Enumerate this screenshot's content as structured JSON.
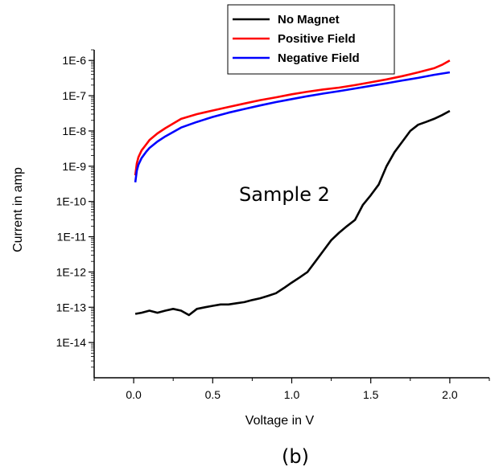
{
  "chart_data": {
    "type": "line",
    "xlabel": "Voltage in V",
    "ylabel": "Current in amp",
    "xlim": [
      -0.25,
      2.25
    ],
    "ylog": true,
    "ylim": [
      1e-15,
      2e-06
    ],
    "xticks": [
      0.0,
      0.5,
      1.0,
      1.5,
      2.0
    ],
    "xtick_labels": [
      "0.0",
      "0.5",
      "1.0",
      "1.5",
      "2.0"
    ],
    "yticks": [
      1e-14,
      1e-13,
      1e-12,
      1e-11,
      1e-10,
      1e-09,
      1e-08,
      1e-07,
      1e-06
    ],
    "ytick_labels": [
      "1E-14",
      "1E-13",
      "1E-12",
      "1E-11",
      "1E-10",
      "1E-9",
      "1E-8",
      "1E-7",
      "1E-6"
    ],
    "annotation": "Sample 2",
    "caption": "(b)",
    "grid": false,
    "legend_position": "top-right",
    "series": [
      {
        "name": "No Magnet",
        "color": "#000000",
        "x": [
          0.01,
          0.05,
          0.1,
          0.15,
          0.2,
          0.25,
          0.3,
          0.35,
          0.4,
          0.45,
          0.5,
          0.55,
          0.6,
          0.65,
          0.7,
          0.75,
          0.8,
          0.85,
          0.9,
          0.95,
          1.0,
          1.05,
          1.1,
          1.15,
          1.2,
          1.25,
          1.3,
          1.35,
          1.4,
          1.45,
          1.5,
          1.55,
          1.6,
          1.65,
          1.7,
          1.75,
          1.8,
          1.85,
          1.9,
          1.95,
          2.0
        ],
        "y": [
          6.5e-14,
          7e-14,
          8e-14,
          7e-14,
          8e-14,
          9e-14,
          8e-14,
          6e-14,
          9e-14,
          1e-13,
          1.1e-13,
          1.2e-13,
          1.2e-13,
          1.3e-13,
          1.4e-13,
          1.6e-13,
          1.8e-13,
          2.1e-13,
          2.5e-13,
          3.5e-13,
          5e-13,
          7e-13,
          1e-12,
          2e-12,
          4e-12,
          8e-12,
          1.3e-11,
          2e-11,
          3e-11,
          8e-11,
          1.5e-10,
          3e-10,
          1e-09,
          2.5e-09,
          5e-09,
          1e-08,
          1.5e-08,
          1.8e-08,
          2.2e-08,
          2.8e-08,
          3.7e-08
        ]
      },
      {
        "name": "Positive Field",
        "color": "#ff0000",
        "x": [
          0.01,
          0.02,
          0.03,
          0.05,
          0.08,
          0.1,
          0.15,
          0.2,
          0.3,
          0.4,
          0.5,
          0.6,
          0.7,
          0.8,
          0.9,
          1.0,
          1.1,
          1.2,
          1.3,
          1.4,
          1.5,
          1.6,
          1.7,
          1.8,
          1.9,
          1.95,
          2.0
        ],
        "y": [
          5.5e-10,
          1.2e-09,
          1.8e-09,
          2.8e-09,
          4.2e-09,
          5.5e-09,
          8.5e-09,
          1.2e-08,
          2.2e-08,
          3e-08,
          3.8e-08,
          4.8e-08,
          6e-08,
          7.5e-08,
          9e-08,
          1.1e-07,
          1.3e-07,
          1.5e-07,
          1.7e-07,
          2e-07,
          2.4e-07,
          2.9e-07,
          3.6e-07,
          4.6e-07,
          6e-07,
          7.5e-07,
          1e-06
        ]
      },
      {
        "name": "Negative Field",
        "color": "#0000ff",
        "x": [
          0.01,
          0.02,
          0.03,
          0.05,
          0.08,
          0.1,
          0.15,
          0.2,
          0.3,
          0.4,
          0.5,
          0.6,
          0.7,
          0.8,
          0.9,
          1.0,
          1.1,
          1.2,
          1.3,
          1.4,
          1.5,
          1.6,
          1.7,
          1.8,
          1.9,
          2.0
        ],
        "y": [
          3.5e-10,
          7.5e-10,
          1.1e-09,
          1.7e-09,
          2.6e-09,
          3.3e-09,
          5e-09,
          7e-09,
          1.25e-08,
          1.8e-08,
          2.5e-08,
          3.3e-08,
          4.2e-08,
          5.3e-08,
          6.6e-08,
          8e-08,
          9.7e-08,
          1.15e-07,
          1.35e-07,
          1.6e-07,
          1.9e-07,
          2.25e-07,
          2.7e-07,
          3.2e-07,
          3.9e-07,
          4.6e-07
        ]
      }
    ]
  }
}
